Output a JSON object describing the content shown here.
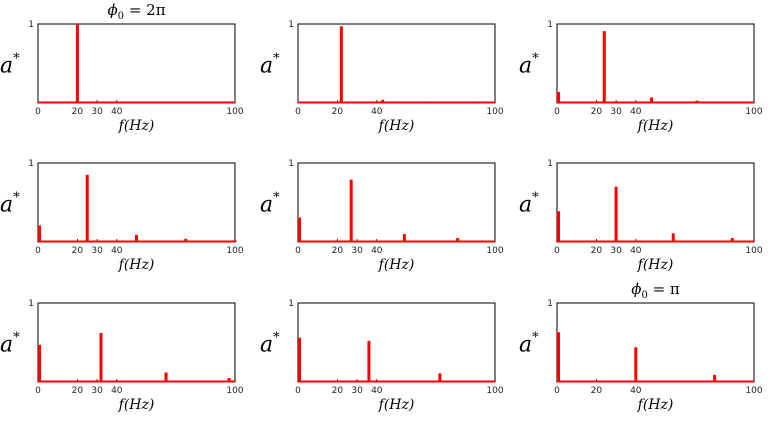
{
  "chart_data": [
    {
      "type": "bar",
      "title": "ϕ0 = 2π",
      "xlabel": "f(Hz)",
      "ylabel": "a*",
      "xlim": [
        0,
        100
      ],
      "ylim": [
        0,
        1
      ],
      "xticks": [
        0,
        20,
        30,
        40,
        100
      ],
      "yticks": [
        1
      ],
      "series": [
        {
          "x": [
            0,
            20
          ],
          "values": [
            0.01,
            1.0
          ]
        }
      ],
      "color": "#ff0000"
    },
    {
      "type": "bar",
      "title": "",
      "xlabel": "f(Hz)",
      "ylabel": "a*",
      "xlim": [
        0,
        100
      ],
      "ylim": [
        0,
        1
      ],
      "xticks": [
        0,
        20,
        40,
        100
      ],
      "yticks": [
        1
      ],
      "series": [
        {
          "x": [
            0,
            22,
            43,
            66,
            89
          ],
          "values": [
            0.01,
            0.97,
            0.04,
            0.02,
            0.02
          ]
        }
      ],
      "color": "#ff0000"
    },
    {
      "type": "bar",
      "title": "",
      "xlabel": "f(Hz)",
      "ylabel": "a*",
      "xlim": [
        0,
        100
      ],
      "ylim": [
        0,
        1
      ],
      "xticks": [
        0,
        20,
        30,
        40,
        100
      ],
      "yticks": [
        1
      ],
      "series": [
        {
          "x": [
            0,
            24,
            48,
            71,
            95
          ],
          "values": [
            0.14,
            0.91,
            0.07,
            0.03,
            0.02
          ]
        }
      ],
      "color": "#ff0000"
    },
    {
      "type": "bar",
      "title": "",
      "xlabel": "f(Hz)",
      "ylabel": "a*",
      "xlim": [
        0,
        100
      ],
      "ylim": [
        0,
        1
      ],
      "xticks": [
        0,
        20,
        30,
        40,
        100
      ],
      "yticks": [
        1
      ],
      "series": [
        {
          "x": [
            0,
            25,
            50,
            75,
            100
          ],
          "values": [
            0.21,
            0.85,
            0.09,
            0.04,
            0.02
          ]
        }
      ],
      "color": "#ff0000"
    },
    {
      "type": "bar",
      "title": "",
      "xlabel": "f(Hz)",
      "ylabel": "a*",
      "xlim": [
        0,
        100
      ],
      "ylim": [
        0,
        1
      ],
      "xticks": [
        0,
        20,
        30,
        40,
        100
      ],
      "yticks": [
        1
      ],
      "series": [
        {
          "x": [
            0,
            27,
            54,
            81
          ],
          "values": [
            0.31,
            0.79,
            0.1,
            0.05
          ]
        }
      ],
      "color": "#ff0000"
    },
    {
      "type": "bar",
      "title": "",
      "xlabel": "f(Hz)",
      "ylabel": "a*",
      "xlim": [
        0,
        100
      ],
      "ylim": [
        0,
        1
      ],
      "xticks": [
        0,
        20,
        30,
        40,
        100
      ],
      "yticks": [
        1
      ],
      "series": [
        {
          "x": [
            0,
            30,
            59,
            89
          ],
          "values": [
            0.39,
            0.7,
            0.11,
            0.05
          ]
        }
      ],
      "color": "#ff0000"
    },
    {
      "type": "bar",
      "title": "",
      "xlabel": "f(Hz)",
      "ylabel": "a*",
      "xlim": [
        0,
        100
      ],
      "ylim": [
        0,
        1
      ],
      "xticks": [
        0,
        20,
        30,
        40,
        100
      ],
      "yticks": [
        1
      ],
      "series": [
        {
          "x": [
            0,
            32,
            65,
            97
          ],
          "values": [
            0.47,
            0.62,
            0.12,
            0.05
          ]
        }
      ],
      "color": "#ff0000"
    },
    {
      "type": "bar",
      "title": "",
      "xlabel": "f(Hz)",
      "ylabel": "a*",
      "xlim": [
        0,
        100
      ],
      "ylim": [
        0,
        1
      ],
      "xticks": [
        0,
        20,
        30,
        40,
        100
      ],
      "yticks": [
        1
      ],
      "series": [
        {
          "x": [
            0,
            36,
            72
          ],
          "values": [
            0.56,
            0.52,
            0.11
          ]
        }
      ],
      "color": "#ff0000"
    },
    {
      "type": "bar",
      "title": "ϕ0 = π",
      "xlabel": "f(Hz)",
      "ylabel": "a*",
      "xlim": [
        0,
        100
      ],
      "ylim": [
        0,
        1
      ],
      "xticks": [
        0,
        20,
        40,
        100
      ],
      "yticks": [
        1
      ],
      "series": [
        {
          "x": [
            0,
            40,
            80
          ],
          "values": [
            0.63,
            0.44,
            0.09
          ]
        }
      ],
      "color": "#ff0000"
    }
  ]
}
